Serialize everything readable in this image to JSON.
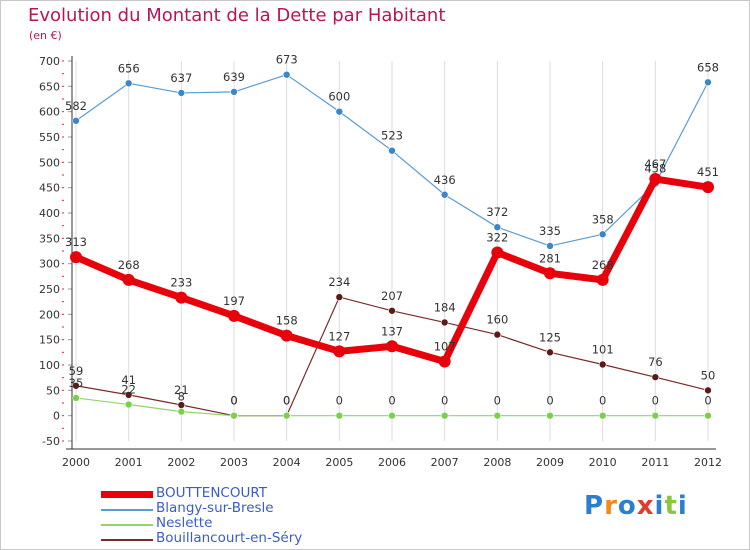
{
  "title": "Evolution du Montant de la Dette par Habitant",
  "subtitle": "(en €)",
  "chart_data": {
    "type": "line",
    "title": "Evolution du Montant de la Dette par Habitant",
    "subtitle": "(en €)",
    "xlabel": "",
    "ylabel": "",
    "ylim": [
      -50,
      700
    ],
    "yticks": [
      -50,
      0,
      50,
      100,
      150,
      200,
      250,
      300,
      350,
      400,
      450,
      500,
      550,
      600,
      650,
      700
    ],
    "x": [
      2000,
      2001,
      2002,
      2003,
      2004,
      2005,
      2006,
      2007,
      2008,
      2009,
      2010,
      2011,
      2012
    ],
    "grid": "vertical",
    "legend": "bottom-left",
    "series": [
      {
        "name": "BOUTTENCOURT",
        "color": "#e8000b",
        "values": [
          313,
          268,
          233,
          197,
          158,
          127,
          137,
          107,
          322,
          281,
          268,
          467,
          451
        ]
      },
      {
        "name": "Blangy-sur-Bresle",
        "color": "#5a9bd4",
        "values": [
          582,
          656,
          637,
          639,
          673,
          600,
          523,
          436,
          372,
          335,
          358,
          458,
          658
        ]
      },
      {
        "name": "Neslette",
        "color": "#8fd66a",
        "values": [
          35,
          22,
          8,
          0,
          0,
          0,
          0,
          0,
          0,
          0,
          0,
          0,
          0
        ]
      },
      {
        "name": "Bouillancourt-en-Séry",
        "color": "#7a2b2b",
        "values": [
          59,
          41,
          21,
          0,
          0,
          234,
          207,
          184,
          160,
          125,
          101,
          76,
          50
        ]
      }
    ]
  },
  "legend": [
    {
      "label": "BOUTTENCOURT",
      "color": "#e8000b"
    },
    {
      "label": "Blangy-sur-Bresle",
      "color": "#5a9bd4"
    },
    {
      "label": "Neslette",
      "color": "#8fd66a"
    },
    {
      "label": "Bouillancourt-en-Séry",
      "color": "#7a2b2b"
    }
  ],
  "logo": {
    "text": "Proxiti",
    "letters": [
      "P",
      "r",
      "o",
      "x",
      "i",
      "t",
      "i"
    ],
    "colors": [
      "#2a7fd1",
      "#f08a1c",
      "#2a7fd1",
      "#e03c2c",
      "#2a7fd1",
      "#8cc63e",
      "#2a7fd1"
    ]
  }
}
